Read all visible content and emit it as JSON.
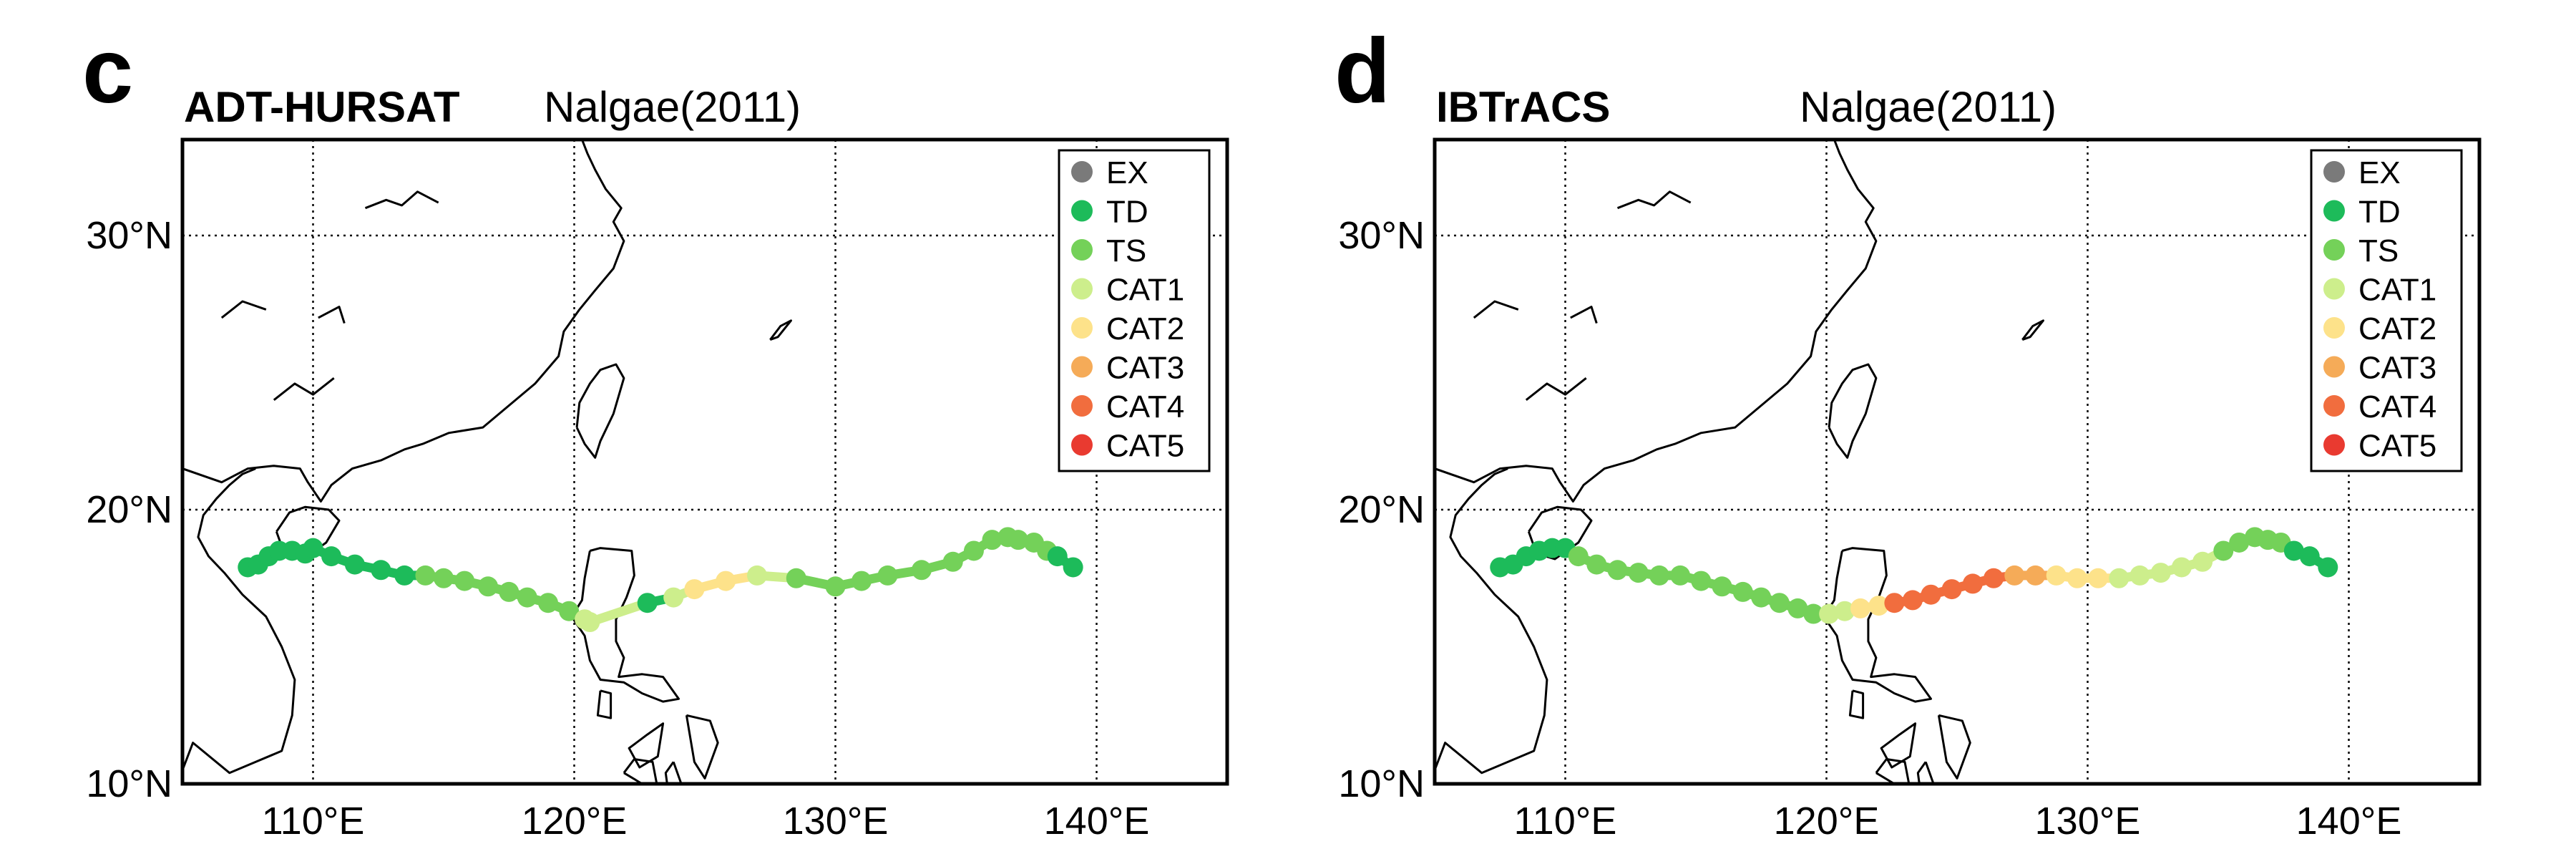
{
  "category_colors": {
    "EX": "#7a7a7a",
    "TD": "#1dbb5a",
    "TS": "#74d159",
    "CAT1": "#cdee8c",
    "CAT2": "#fde28a",
    "CAT3": "#f5ab58",
    "CAT4": "#f16d3e",
    "CAT5": "#e93a30"
  },
  "legend_entries": [
    "EX",
    "TD",
    "TS",
    "CAT1",
    "CAT2",
    "CAT3",
    "CAT4",
    "CAT5"
  ],
  "lon_ticks": [
    "110°E",
    "120°E",
    "130°E",
    "140°E"
  ],
  "lat_ticks": [
    "30°N",
    "20°N",
    "10°N"
  ],
  "panels": [
    {
      "letter": "c",
      "dataset": "ADT-HURSAT",
      "storm": "Nalgae(2011)",
      "extent": {
        "lon": [
          105,
          145
        ],
        "lat": [
          10,
          33.5
        ]
      },
      "track": [
        [
          107.5,
          17.9,
          "TD"
        ],
        [
          107.9,
          18.0,
          "TD"
        ],
        [
          108.3,
          18.3,
          "TD"
        ],
        [
          108.7,
          18.5,
          "TD"
        ],
        [
          109.2,
          18.5,
          "TD"
        ],
        [
          109.7,
          18.4,
          "TD"
        ],
        [
          110.0,
          18.6,
          "TD"
        ],
        [
          110.7,
          18.3,
          "TD"
        ],
        [
          111.6,
          18.0,
          "TD"
        ],
        [
          112.6,
          17.8,
          "TD"
        ],
        [
          113.5,
          17.6,
          "TD"
        ],
        [
          114.3,
          17.6,
          "TS"
        ],
        [
          115.0,
          17.5,
          "TS"
        ],
        [
          115.8,
          17.4,
          "TS"
        ],
        [
          116.7,
          17.2,
          "TS"
        ],
        [
          117.5,
          17.0,
          "TS"
        ],
        [
          118.2,
          16.8,
          "TS"
        ],
        [
          119.0,
          16.6,
          "TS"
        ],
        [
          119.8,
          16.3,
          "TS"
        ],
        [
          120.4,
          16.0,
          "CAT1"
        ],
        [
          120.6,
          15.9,
          "CAT1"
        ],
        [
          122.8,
          16.6,
          "TD"
        ],
        [
          123.8,
          16.8,
          "CAT1"
        ],
        [
          124.6,
          17.1,
          "CAT2"
        ],
        [
          125.8,
          17.4,
          "CAT2"
        ],
        [
          127.0,
          17.6,
          "CAT1"
        ],
        [
          128.5,
          17.5,
          "TS"
        ],
        [
          130.0,
          17.2,
          "TS"
        ],
        [
          131.0,
          17.4,
          "TS"
        ],
        [
          132.0,
          17.6,
          "TS"
        ],
        [
          133.3,
          17.8,
          "TS"
        ],
        [
          134.5,
          18.1,
          "TS"
        ],
        [
          135.3,
          18.5,
          "TS"
        ],
        [
          136.0,
          18.9,
          "TS"
        ],
        [
          136.6,
          19.0,
          "TS"
        ],
        [
          137.0,
          18.9,
          "TS"
        ],
        [
          137.6,
          18.8,
          "TS"
        ],
        [
          138.1,
          18.5,
          "TS"
        ],
        [
          138.5,
          18.3,
          "TD"
        ],
        [
          139.1,
          17.9,
          "TD"
        ]
      ]
    },
    {
      "letter": "d",
      "dataset": "IBTrACS",
      "storm": "Nalgae(2011)",
      "extent": {
        "lon": [
          105,
          145
        ],
        "lat": [
          10,
          33.5
        ]
      },
      "track": [
        [
          107.5,
          17.9,
          "TD"
        ],
        [
          108.0,
          18.0,
          "TD"
        ],
        [
          108.5,
          18.3,
          "TD"
        ],
        [
          109.0,
          18.5,
          "TD"
        ],
        [
          109.5,
          18.6,
          "TD"
        ],
        [
          110.0,
          18.6,
          "TD"
        ],
        [
          110.5,
          18.3,
          "TS"
        ],
        [
          111.2,
          18.0,
          "TS"
        ],
        [
          112.0,
          17.8,
          "TS"
        ],
        [
          112.8,
          17.7,
          "TS"
        ],
        [
          113.6,
          17.6,
          "TS"
        ],
        [
          114.4,
          17.6,
          "TS"
        ],
        [
          115.2,
          17.4,
          "TS"
        ],
        [
          116.0,
          17.2,
          "TS"
        ],
        [
          116.8,
          17.0,
          "TS"
        ],
        [
          117.5,
          16.8,
          "TS"
        ],
        [
          118.2,
          16.6,
          "TS"
        ],
        [
          118.9,
          16.4,
          "TS"
        ],
        [
          119.5,
          16.2,
          "TS"
        ],
        [
          120.1,
          16.2,
          "CAT1"
        ],
        [
          120.7,
          16.3,
          "CAT1"
        ],
        [
          121.3,
          16.4,
          "CAT2"
        ],
        [
          122.0,
          16.5,
          "CAT2"
        ],
        [
          122.6,
          16.6,
          "CAT4"
        ],
        [
          123.3,
          16.7,
          "CAT4"
        ],
        [
          124.0,
          16.9,
          "CAT4"
        ],
        [
          124.8,
          17.1,
          "CAT4"
        ],
        [
          125.6,
          17.3,
          "CAT4"
        ],
        [
          126.4,
          17.5,
          "CAT4"
        ],
        [
          127.2,
          17.6,
          "CAT3"
        ],
        [
          128.0,
          17.6,
          "CAT3"
        ],
        [
          128.8,
          17.6,
          "CAT2"
        ],
        [
          129.6,
          17.5,
          "CAT2"
        ],
        [
          130.4,
          17.5,
          "CAT2"
        ],
        [
          131.2,
          17.5,
          "CAT1"
        ],
        [
          132.0,
          17.6,
          "CAT1"
        ],
        [
          132.8,
          17.7,
          "CAT1"
        ],
        [
          133.6,
          17.9,
          "CAT1"
        ],
        [
          134.4,
          18.1,
          "CAT1"
        ],
        [
          135.2,
          18.5,
          "TS"
        ],
        [
          135.8,
          18.8,
          "TS"
        ],
        [
          136.4,
          19.0,
          "TS"
        ],
        [
          136.9,
          18.9,
          "TS"
        ],
        [
          137.4,
          18.8,
          "TS"
        ],
        [
          137.9,
          18.5,
          "TD"
        ],
        [
          138.5,
          18.3,
          "TD"
        ],
        [
          139.2,
          17.9,
          "TD"
        ]
      ]
    }
  ]
}
